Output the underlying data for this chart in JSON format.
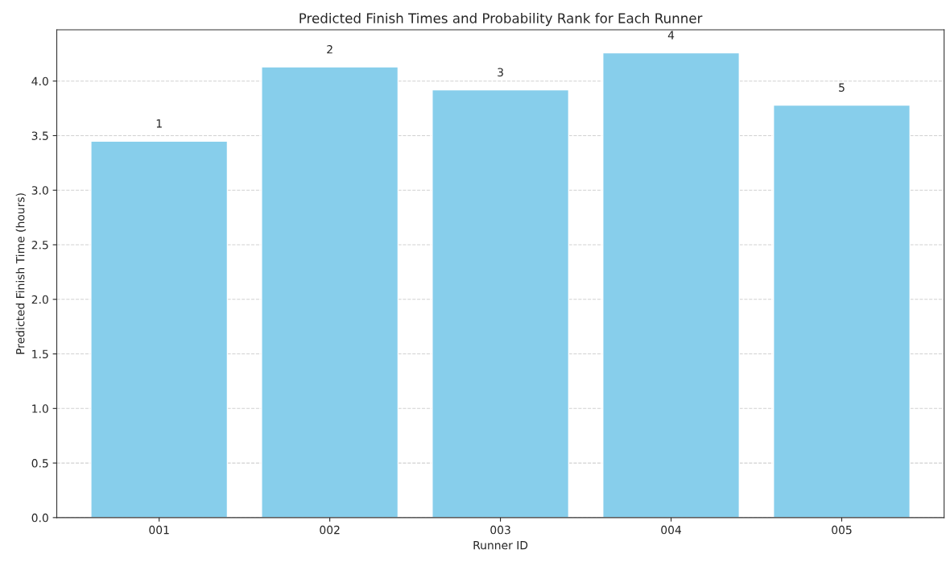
{
  "chart_data": {
    "type": "bar",
    "title": "Predicted Finish Times and Probability Rank for Each Runner",
    "xlabel": "Runner ID",
    "ylabel": "Predicted Finish Time (hours)",
    "categories": [
      "001",
      "002",
      "003",
      "004",
      "005"
    ],
    "values": [
      3.45,
      4.13,
      3.92,
      4.26,
      3.78
    ],
    "annotations": [
      {
        "text": "1",
        "x": "001",
        "y": 3.45
      },
      {
        "text": "2",
        "x": "002",
        "y": 4.13
      },
      {
        "text": "3",
        "x": "003",
        "y": 3.92
      },
      {
        "text": "4",
        "x": "004",
        "y": 4.26
      },
      {
        "text": "5",
        "x": "005",
        "y": 3.78
      }
    ],
    "color": "#87ceeb",
    "ylim": [
      0,
      4.47
    ],
    "yticks": [
      {
        "value": 0,
        "label": "0.0"
      },
      0.5,
      {
        "value": 1,
        "label": "1.0"
      },
      1.5,
      {
        "value": 2,
        "label": "2.0"
      },
      2.5,
      {
        "value": 3,
        "label": "3.0"
      },
      3.5,
      {
        "value": 4,
        "label": "4.0"
      }
    ],
    "grid": "y"
  }
}
